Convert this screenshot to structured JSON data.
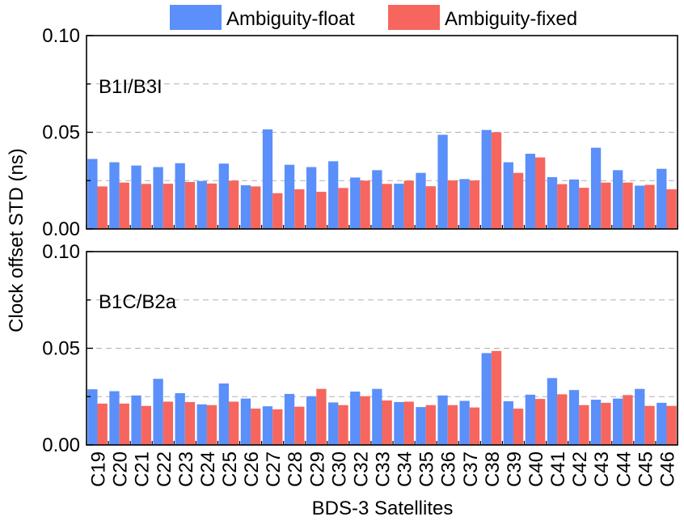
{
  "legend": {
    "items": [
      {
        "label": "Ambiguity-float",
        "color": "#5b8ff9"
      },
      {
        "label": "Ambiguity-fixed",
        "color": "#f6665e"
      }
    ]
  },
  "chart_data": {
    "type": "bar",
    "title": "",
    "xlabel": "BDS-3 Satellites",
    "ylabel": "Clock offset STD (ns)",
    "ylim": [
      0,
      0.1
    ],
    "yticks": [
      "0.00",
      "0.05",
      "0.10"
    ],
    "grid": "dashed horizontal at 0.025, 0.05, 0.075",
    "legend_position": "top",
    "categories": [
      "C19",
      "C20",
      "C21",
      "C22",
      "C23",
      "C24",
      "C25",
      "C26",
      "C27",
      "C28",
      "C29",
      "C30",
      "C32",
      "C33",
      "C34",
      "C35",
      "C36",
      "C37",
      "C38",
      "C39",
      "C40",
      "C41",
      "C42",
      "C43",
      "C44",
      "C45",
      "C46"
    ],
    "panels": [
      {
        "label": "B1I/B3I",
        "series": [
          {
            "name": "Ambiguity-float",
            "color": "#5b8ff9",
            "values": [
              0.0362,
              0.0345,
              0.0328,
              0.032,
              0.034,
              0.0248,
              0.0338,
              0.0226,
              0.0515,
              0.0332,
              0.032,
              0.035,
              0.0266,
              0.0304,
              0.0234,
              0.029,
              0.0487,
              0.0258,
              0.0512,
              0.0345,
              0.0389,
              0.0268,
              0.0256,
              0.042,
              0.0304,
              0.0224,
              0.0311
            ]
          },
          {
            "name": "Ambiguity-fixed",
            "color": "#f6665e",
            "values": [
              0.022,
              0.024,
              0.0233,
              0.0234,
              0.0243,
              0.0235,
              0.025,
              0.022,
              0.0185,
              0.0205,
              0.0192,
              0.0212,
              0.025,
              0.0233,
              0.025,
              0.0221,
              0.0251,
              0.0251,
              0.05,
              0.029,
              0.037,
              0.0232,
              0.0213,
              0.024,
              0.024,
              0.0228,
              0.0205
            ]
          }
        ]
      },
      {
        "label": "B1C/B2a",
        "series": [
          {
            "name": "Ambiguity-float",
            "color": "#5b8ff9",
            "values": [
              0.0288,
              0.0278,
              0.0256,
              0.0342,
              0.0268,
              0.021,
              0.0318,
              0.024,
              0.02,
              0.0264,
              0.0252,
              0.022,
              0.0276,
              0.029,
              0.0222,
              0.0196,
              0.0256,
              0.0228,
              0.0475,
              0.0226,
              0.026,
              0.0346,
              0.0284,
              0.0234,
              0.024,
              0.029,
              0.0218
            ]
          },
          {
            "name": "Ambiguity-fixed",
            "color": "#f6665e",
            "values": [
              0.0214,
              0.0214,
              0.0202,
              0.0224,
              0.0222,
              0.0206,
              0.0224,
              0.0188,
              0.0184,
              0.0198,
              0.029,
              0.0206,
              0.0252,
              0.023,
              0.0224,
              0.0206,
              0.0206,
              0.0194,
              0.0486,
              0.0188,
              0.0238,
              0.0262,
              0.0206,
              0.0218,
              0.0258,
              0.0202,
              0.0202
            ]
          }
        ]
      }
    ]
  }
}
